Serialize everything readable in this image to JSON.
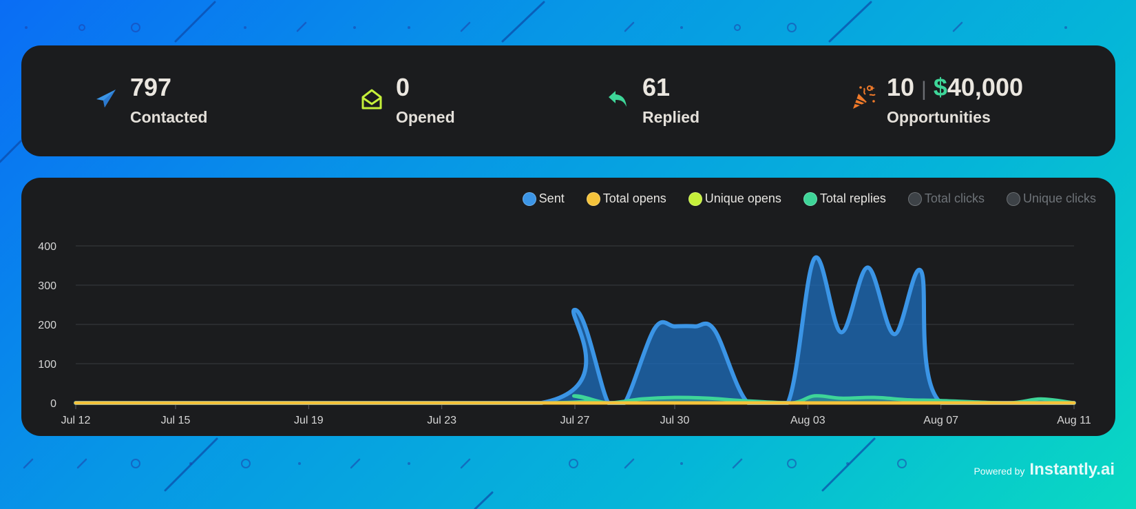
{
  "stats": [
    {
      "id": "contacted",
      "value": "797",
      "label": "Contacted",
      "icon": "paper-plane-icon",
      "color": "#3b95e6"
    },
    {
      "id": "opened",
      "value": "0",
      "label": "Opened",
      "icon": "open-envelope-icon",
      "color": "#c5f03a"
    },
    {
      "id": "replied",
      "value": "61",
      "label": "Replied",
      "icon": "reply-arrow-icon",
      "color": "#3ed598"
    },
    {
      "id": "opportunities",
      "value": "10",
      "separator": "|",
      "currency": "$",
      "amount": "40,000",
      "label": "Opportunities",
      "icon": "party-popper-icon",
      "color": "#f07a2a"
    }
  ],
  "legend": [
    {
      "label": "Sent",
      "color": "#3b95e6",
      "active": true
    },
    {
      "label": "Total opens",
      "color": "#f5c33b",
      "active": true
    },
    {
      "label": "Unique opens",
      "color": "#c5f03a",
      "active": true
    },
    {
      "label": "Total replies",
      "color": "#3ed598",
      "active": true
    },
    {
      "label": "Total clicks",
      "color": "#3d4247",
      "active": false
    },
    {
      "label": "Unique clicks",
      "color": "#3d4247",
      "active": false
    }
  ],
  "chart_data": {
    "type": "area",
    "title": "",
    "xlabel": "",
    "ylabel": "",
    "ylim": [
      0,
      400
    ],
    "yticks": [
      0,
      100,
      200,
      300,
      400
    ],
    "x_tick_labels": [
      "Jul 12",
      "Jul 15",
      "Jul 19",
      "Jul 23",
      "Jul 27",
      "Jul 30",
      "Aug 03",
      "Aug 07",
      "Aug 11"
    ],
    "x_tick_days": [
      0,
      3,
      7,
      11,
      15,
      18,
      22,
      26,
      30
    ],
    "grid": true,
    "legend_position": "top-right",
    "series": [
      {
        "name": "Sent",
        "color": "#3b95e6",
        "points": [
          [
            0,
            0
          ],
          [
            14,
            0
          ],
          [
            15,
            237
          ],
          [
            16,
            0
          ],
          [
            16.5,
            0
          ],
          [
            17.4,
            190
          ],
          [
            18,
            195
          ],
          [
            18.6,
            195
          ],
          [
            19.2,
            185
          ],
          [
            20.2,
            0
          ],
          [
            21.4,
            0
          ],
          [
            22.2,
            368
          ],
          [
            23,
            180
          ],
          [
            23.8,
            345
          ],
          [
            24.6,
            175
          ],
          [
            25.4,
            336
          ],
          [
            26,
            0
          ],
          [
            30,
            0
          ]
        ]
      },
      {
        "name": "Total replies",
        "color": "#3ed598",
        "points": [
          [
            0,
            0
          ],
          [
            14.2,
            0
          ],
          [
            15,
            18
          ],
          [
            16,
            0
          ],
          [
            17,
            10
          ],
          [
            18,
            14
          ],
          [
            19,
            12
          ],
          [
            20,
            6
          ],
          [
            21.5,
            0
          ],
          [
            22.2,
            18
          ],
          [
            23,
            12
          ],
          [
            24,
            14
          ],
          [
            25,
            8
          ],
          [
            26,
            6
          ],
          [
            28,
            0
          ],
          [
            29,
            10
          ],
          [
            30,
            0
          ]
        ]
      },
      {
        "name": "Unique opens",
        "color": "#c5f03a",
        "points": [
          [
            0,
            0
          ],
          [
            30,
            0
          ]
        ]
      },
      {
        "name": "Total opens",
        "color": "#f5c33b",
        "points": [
          [
            0,
            0
          ],
          [
            30,
            0
          ]
        ]
      }
    ]
  },
  "footer": {
    "powered_by": "Powered by",
    "brand": "Instantly.ai"
  }
}
